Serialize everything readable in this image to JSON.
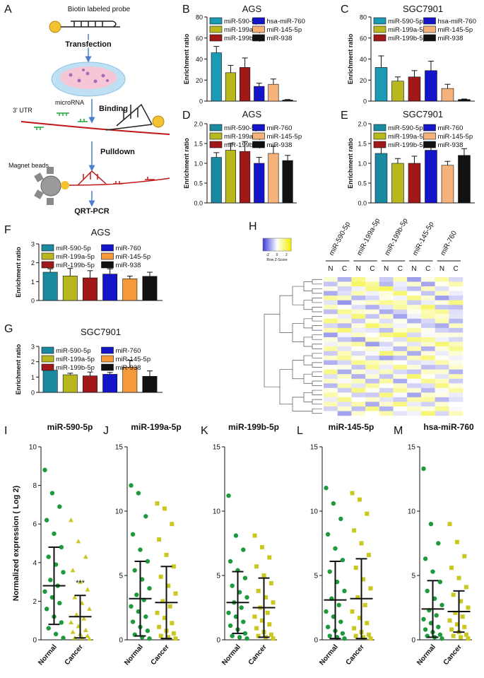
{
  "diagram": {
    "letter": "A",
    "probe": "Biotin labeled probe",
    "steps": [
      "Transfection",
      "Binding",
      "Pulldown",
      "QRT-PCR"
    ],
    "labels": [
      "3' UTR",
      "microRNA",
      "Magnet beads"
    ]
  },
  "chart_data": [
    {
      "letter": "B",
      "type": "bar",
      "title": "AGS",
      "ylabel": "Enrichment ratio",
      "categories": [
        "miR-590-5p",
        "miR-199a-5p",
        "miR-199b-5p",
        "hsa-miR-760",
        "miR-145-5p",
        "miR-938"
      ],
      "values": [
        46,
        27,
        32,
        14,
        16,
        1
      ],
      "errors": [
        6,
        7,
        9,
        3,
        5,
        0.5
      ],
      "colors": [
        "#1a9ab5",
        "#b8b81e",
        "#a01818",
        "#1414c8",
        "#f5b27a",
        "#111111"
      ],
      "ylim": [
        0,
        80
      ],
      "yticks": [
        0,
        20,
        40,
        60,
        80
      ]
    },
    {
      "letter": "C",
      "type": "bar",
      "title": "SGC7901",
      "ylabel": "Enrichment ratio",
      "categories": [
        "miR-590-5p",
        "miR-199a-5p",
        "miR-199b-5p",
        "hsa-miR-760",
        "miR-145-5p",
        "miR-938"
      ],
      "values": [
        32,
        19,
        23,
        29,
        12,
        1.5
      ],
      "errors": [
        11,
        4,
        6,
        9,
        4,
        0.5
      ],
      "colors": [
        "#1a9ab5",
        "#b8b81e",
        "#a01818",
        "#1414c8",
        "#f5b27a",
        "#111111"
      ],
      "ylim": [
        0,
        80
      ],
      "yticks": [
        0,
        20,
        40,
        60,
        80
      ]
    },
    {
      "letter": "D",
      "type": "bar",
      "title": "AGS",
      "ylabel": "Enrichment ratio",
      "categories": [
        "miR-590-5p",
        "miR-199a-5p",
        "miR-199b-5p",
        "miR-760",
        "miR-145-5p",
        "miR-938"
      ],
      "values": [
        1.15,
        1.33,
        1.3,
        1.0,
        1.25,
        1.07
      ],
      "errors": [
        0.12,
        0.17,
        0.25,
        0.15,
        0.18,
        0.13
      ],
      "colors": [
        "#1a8aa0",
        "#b8b81e",
        "#a01818",
        "#1414c8",
        "#f5b27a",
        "#111111"
      ],
      "ylim": [
        0,
        2
      ],
      "yticks": [
        {
          "value": 0,
          "label": "0.0"
        },
        {
          "value": 0.5,
          "label": "0.5"
        },
        {
          "value": 1,
          "label": "1.0"
        },
        {
          "value": 1.5,
          "label": "1.5"
        },
        {
          "value": 2,
          "label": "2.0"
        }
      ]
    },
    {
      "letter": "E",
      "type": "bar",
      "title": "SGC7901",
      "ylabel": "Enrichment ratio",
      "categories": [
        "miR-590-5p",
        "miR-199a-5p",
        "miR-199b-5p",
        "miR-760",
        "miR-145-5p",
        "miR-938"
      ],
      "values": [
        1.25,
        1.0,
        1.0,
        1.33,
        0.95,
        1.2
      ],
      "errors": [
        0.17,
        0.12,
        0.18,
        0.12,
        0.1,
        0.17
      ],
      "colors": [
        "#1a8aa0",
        "#b8b81e",
        "#a01818",
        "#1414c8",
        "#f5b27a",
        "#111111"
      ],
      "ylim": [
        0,
        2
      ],
      "yticks": [
        {
          "value": 0,
          "label": "0.0"
        },
        {
          "value": 0.5,
          "label": "0.5"
        },
        {
          "value": 1,
          "label": "1.0"
        },
        {
          "value": 1.5,
          "label": "1.5"
        },
        {
          "value": 2,
          "label": "2.0"
        }
      ]
    },
    {
      "letter": "F",
      "type": "bar",
      "title": "AGS",
      "ylabel": "Enrichment ratio",
      "categories": [
        "miR-590-5p",
        "miR-199a-5p",
        "miR-199b-5p",
        "miR-760",
        "miR-145-5p",
        "miR-938"
      ],
      "values": [
        1.5,
        1.3,
        1.2,
        1.4,
        1.15,
        1.28
      ],
      "errors": [
        0.18,
        0.4,
        0.38,
        0.28,
        0.14,
        0.22
      ],
      "colors": [
        "#1a8aa0",
        "#b8b81e",
        "#a01818",
        "#1414c8",
        "#f59a3a",
        "#111111"
      ],
      "ylim": [
        0,
        3
      ],
      "yticks": [
        0,
        1,
        2,
        3
      ]
    },
    {
      "letter": "G",
      "type": "bar",
      "title": "SGC7901",
      "ylabel": "Enrichment ratio",
      "categories": [
        "miR-590-5p",
        "miR-199a-5p",
        "miR-199b-5p",
        "miR-760",
        "miR-145-5p",
        "miR-938"
      ],
      "values": [
        1.45,
        1.15,
        1.08,
        1.18,
        1.65,
        1.05
      ],
      "errors": [
        0.18,
        0.1,
        0.25,
        0.12,
        0.45,
        0.35
      ],
      "colors": [
        "#1a8aa0",
        "#b8b81e",
        "#a01818",
        "#1414c8",
        "#f59a3a",
        "#111111"
      ],
      "ylim": [
        0,
        3
      ],
      "yticks": [
        0,
        1,
        2,
        3
      ]
    },
    {
      "letter": "H",
      "type": "heatmap",
      "groups": [
        "miR-590-5p",
        "miR-199a-5p",
        "miR-199b-5p",
        "miR-145-5p",
        "miR-760"
      ],
      "columns": [
        "N",
        "C",
        "N",
        "C",
        "N",
        "C",
        "N",
        "C",
        "N",
        "C"
      ],
      "zlim": [
        -3,
        3
      ],
      "colors": [
        "#3c3cdc",
        "#ffffff",
        "#f0f000"
      ],
      "colorbar": {
        "ticks": [
          -2,
          0,
          2
        ],
        "label": "Row Z-Score"
      },
      "values": [
        [
          0.5,
          -1.2,
          1.4,
          0.2,
          -0.8,
          0.9,
          -1.5,
          0.3,
          1.1,
          -0.6
        ],
        [
          -0.9,
          0.4,
          1.8,
          1.2,
          -1.1,
          -0.3,
          0.6,
          -1.4,
          0.2,
          1.0
        ],
        [
          0.3,
          -0.7,
          -0.2,
          1.5,
          1.9,
          -0.4,
          -1.0,
          0.8,
          -0.5,
          0.1
        ],
        [
          -1.3,
          -0.5,
          0.9,
          -0.2,
          0.4,
          1.6,
          0.1,
          -0.9,
          0.7,
          -0.3
        ],
        [
          1.2,
          0.8,
          -1.1,
          -0.6,
          0.3,
          -0.2,
          1.4,
          0.5,
          -1.5,
          -0.7
        ],
        [
          -0.4,
          -1.6,
          0.2,
          0.7,
          1.3,
          0.9,
          -0.8,
          -0.3,
          0.4,
          1.5
        ],
        [
          0.8,
          0.1,
          -0.5,
          -1.2,
          -0.4,
          1.1,
          0.6,
          1.7,
          -0.9,
          -1.0
        ],
        [
          -1.0,
          1.3,
          0.6,
          0.4,
          -1.3,
          -0.7,
          0.2,
          0.9,
          1.2,
          -0.5
        ],
        [
          0.2,
          -0.3,
          1.6,
          -0.9,
          0.7,
          -1.4,
          -0.2,
          1.0,
          0.5,
          -0.4
        ],
        [
          1.5,
          0.6,
          -0.8,
          0.3,
          -0.5,
          0.2,
          -1.2,
          -0.6,
          0.9,
          -1.1
        ],
        [
          -0.6,
          -1.1,
          0.4,
          1.7,
          0.9,
          -0.2,
          0.3,
          -0.8,
          -1.3,
          0.7
        ],
        [
          0.9,
          1.6,
          -0.3,
          -0.4,
          -1.0,
          0.5,
          1.1,
          0.2,
          -0.7,
          -0.9
        ],
        [
          -1.5,
          -0.2,
          0.7,
          0.1,
          1.4,
          1.8,
          -0.6,
          -0.1,
          0.3,
          0.4
        ],
        [
          0.4,
          -0.9,
          -1.4,
          0.8,
          0.2,
          -0.5,
          1.5,
          1.2,
          -0.2,
          -0.6
        ],
        [
          -0.2,
          0.5,
          1.1,
          -1.5,
          -0.6,
          0.3,
          -0.4,
          0.6,
          1.6,
          0.8
        ],
        [
          1.1,
          -0.4,
          0.1,
          0.6,
          -0.2,
          -1.1,
          0.9,
          -1.2,
          0.4,
          1.3
        ],
        [
          -0.8,
          0.9,
          -0.6,
          -0.1,
          1.6,
          0.7,
          -1.3,
          0.4,
          -0.3,
          0.5
        ],
        [
          0.6,
          1.2,
          0.3,
          -0.7,
          -1.4,
          -0.9,
          0.8,
          1.5,
          0.1,
          -0.2
        ],
        [
          -1.2,
          -0.6,
          1.3,
          0.9,
          0.5,
          0.1,
          -0.5,
          -0.3,
          1.0,
          0.2
        ],
        [
          0.1,
          0.3,
          -0.9,
          1.3,
          -0.3,
          1.4,
          0.4,
          -1.0,
          -0.8,
          0.6
        ],
        [
          1.4,
          -1.3,
          0.5,
          -0.3,
          0.8,
          -0.6,
          -0.9,
          0.7,
          0.6,
          -1.2
        ],
        [
          -0.5,
          0.7,
          -1.2,
          0.5,
          -0.9,
          0.4,
          1.7,
          0.1,
          -0.4,
          0.9
        ],
        [
          0.7,
          -0.1,
          0.8,
          -1.0,
          1.1,
          -1.3,
          -0.1,
          1.3,
          0.8,
          -0.8
        ],
        [
          -1.1,
          1.0,
          -0.4,
          1.1,
          0.1,
          0.6,
          -0.7,
          -0.5,
          1.4,
          0.3
        ],
        [
          0.3,
          -0.8,
          1.5,
          0.2,
          -0.7,
          1.2,
          0.5,
          -1.1,
          -0.1,
          1.1
        ],
        [
          1.0,
          0.2,
          -0.7,
          -0.8,
          1.5,
          -0.1,
          -1.4,
          0.6,
          0.3,
          -0.3
        ],
        [
          -0.3,
          1.4,
          0.0,
          0.6,
          -0.4,
          -0.8,
          1.0,
          1.1,
          -1.1,
          -0.5
        ],
        [
          0.9,
          -0.5,
          1.0,
          -1.3,
          0.6,
          1.5,
          -0.3,
          -0.7,
          0.5,
          0.0
        ],
        [
          -0.7,
          0.6,
          -1.0,
          1.4,
          -1.2,
          0.0,
          0.7,
          0.3,
          1.3,
          -0.1
        ],
        [
          0.0,
          -1.4,
          0.6,
          0.0,
          1.0,
          -0.4,
          -0.2,
          1.6,
          -0.6,
          0.8
        ]
      ]
    },
    {
      "letter": "I",
      "type": "strip",
      "title": "miR-590-5p",
      "ylabel": "Normalized expression ( Log 2)",
      "ylim": [
        0,
        10
      ],
      "yticks": [
        0,
        2,
        4,
        6,
        8,
        10
      ],
      "groups": [
        {
          "name": "Normal",
          "color": "#1e9a3c",
          "marker": "circle",
          "values": [
            8.8,
            7.6,
            6.9,
            6.2,
            5.5,
            4.8,
            4.3,
            3.9,
            3.5,
            3.1,
            2.8,
            2.5,
            2.2,
            1.9,
            1.6,
            1.2,
            0.9,
            0.6,
            0.3,
            0.1
          ],
          "mean": 2.8,
          "sd": 2.0
        },
        {
          "name": "Cancer",
          "color": "#c8c820",
          "marker": "triangle",
          "values": [
            6.2,
            5.1,
            4.3,
            3.6,
            3.0,
            2.6,
            2.2,
            1.9,
            1.6,
            1.3,
            1.1,
            0.9,
            0.7,
            0.5,
            0.4,
            0.3,
            0.2,
            0.1,
            0.1,
            0.05
          ],
          "mean": 1.2,
          "sd": 1.1,
          "annotation": "***"
        }
      ]
    },
    {
      "letter": "J",
      "type": "strip",
      "title": "miR-199a-5p",
      "ylim": [
        0,
        15
      ],
      "yticks": [
        0,
        5,
        10,
        15
      ],
      "groups": [
        {
          "name": "Normal",
          "color": "#1e9a3c",
          "marker": "circle",
          "values": [
            12,
            11.4,
            9.6,
            8.2,
            7.0,
            6.1,
            5.4,
            4.7,
            4.0,
            3.5,
            3.1,
            2.6,
            2.2,
            1.8,
            1.4,
            1.0,
            0.7,
            0.4,
            0.2,
            0.1
          ],
          "mean": 3.2,
          "sd": 2.9
        },
        {
          "name": "Cancer",
          "color": "#c8c820",
          "marker": "square",
          "values": [
            10.6,
            10.2,
            9.0,
            7.8,
            6.6,
            5.7,
            4.9,
            4.2,
            3.6,
            3.0,
            2.6,
            2.1,
            1.7,
            1.3,
            1.0,
            0.7,
            0.5,
            0.3,
            0.2,
            0.1
          ],
          "mean": 2.9,
          "sd": 2.8
        }
      ]
    },
    {
      "letter": "K",
      "type": "strip",
      "title": "miR-199b-5p",
      "ylim": [
        0,
        15
      ],
      "yticks": [
        0,
        5,
        10,
        15
      ],
      "groups": [
        {
          "name": "Normal",
          "color": "#1e9a3c",
          "marker": "circle",
          "values": [
            11.2,
            8.1,
            7.0,
            6.1,
            5.4,
            4.8,
            4.2,
            3.7,
            3.3,
            2.9,
            2.5,
            2.1,
            1.8,
            1.4,
            1.1,
            0.8,
            0.5,
            0.3,
            0.2,
            0.1
          ],
          "mean": 2.9,
          "sd": 2.4
        },
        {
          "name": "Cancer",
          "color": "#c8c820",
          "marker": "square",
          "values": [
            8.1,
            7.2,
            6.4,
            5.7,
            5.0,
            4.4,
            3.8,
            3.3,
            2.9,
            2.5,
            2.1,
            1.8,
            1.5,
            1.2,
            0.9,
            0.6,
            0.4,
            0.3,
            0.2,
            0.1
          ],
          "mean": 2.5,
          "sd": 2.3
        }
      ]
    },
    {
      "letter": "L",
      "type": "strip",
      "title": "miR-145-5p",
      "ylim": [
        0,
        15
      ],
      "yticks": [
        0,
        5,
        10,
        15
      ],
      "groups": [
        {
          "name": "Normal",
          "color": "#1e9a3c",
          "marker": "circle",
          "values": [
            11.8,
            10.6,
            9.4,
            8.2,
            7.1,
            6.2,
            5.3,
            4.5,
            3.8,
            3.2,
            2.7,
            2.2,
            1.8,
            1.4,
            1.0,
            0.7,
            0.5,
            0.3,
            0.2,
            0.1
          ],
          "mean": 3.1,
          "sd": 3.0
        },
        {
          "name": "Cancer",
          "color": "#c8c820",
          "marker": "square",
          "values": [
            11.4,
            10.9,
            9.8,
            8.5,
            7.5,
            6.6,
            5.6,
            4.7,
            4.0,
            3.3,
            2.7,
            2.2,
            1.7,
            1.3,
            0.9,
            0.6,
            0.4,
            0.3,
            0.2,
            0.1
          ],
          "mean": 3.2,
          "sd": 3.1
        }
      ]
    },
    {
      "letter": "M",
      "type": "strip",
      "title": "hsa-miR-760",
      "ylim": [
        0,
        15
      ],
      "yticks": [
        0,
        5,
        10,
        15
      ],
      "groups": [
        {
          "name": "Normal",
          "color": "#1e9a3c",
          "marker": "circle",
          "values": [
            13.3,
            9.0,
            7.5,
            6.3,
            5.3,
            4.5,
            3.8,
            3.2,
            2.7,
            2.3,
            1.9,
            1.6,
            1.3,
            1.0,
            0.8,
            0.6,
            0.4,
            0.3,
            0.2,
            0.1
          ],
          "mean": 2.4,
          "sd": 2.2
        },
        {
          "name": "Cancer",
          "color": "#c8c820",
          "marker": "square",
          "values": [
            9.0,
            7.6,
            6.5,
            5.6,
            4.8,
            4.1,
            3.5,
            3.0,
            2.5,
            2.1,
            1.8,
            1.5,
            1.2,
            1.0,
            0.8,
            0.6,
            0.4,
            0.3,
            0.2,
            0.1
          ],
          "mean": 2.2,
          "sd": 1.6
        }
      ]
    }
  ]
}
